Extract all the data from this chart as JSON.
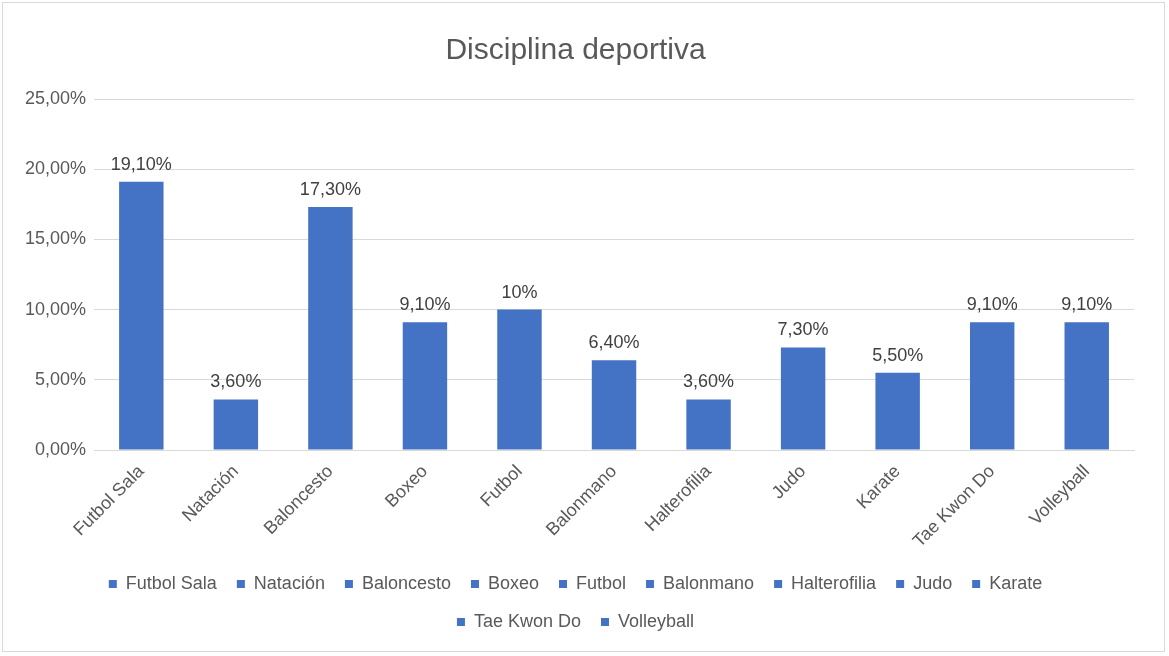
{
  "chart_data": {
    "type": "bar",
    "title": "Disciplina deportiva",
    "categories": [
      "Futbol Sala",
      "Natación",
      "Baloncesto",
      "Boxeo",
      "Futbol",
      "Balonmano",
      "Halterofilia",
      "Judo",
      "Karate",
      "Tae Kwon Do",
      "Volleyball"
    ],
    "series": [
      {
        "name": "Futbol Sala",
        "color": "#4472c4",
        "values": [
          19.1,
          null,
          null,
          null,
          null,
          null,
          null,
          null,
          null,
          null,
          null
        ],
        "value_labels": [
          "19,10%",
          null,
          null,
          null,
          null,
          null,
          null,
          null,
          null,
          null,
          null
        ]
      },
      {
        "name": "Natación",
        "color": "#4472c4",
        "values": [
          null,
          3.6,
          null,
          null,
          null,
          null,
          null,
          null,
          null,
          null,
          null
        ],
        "value_labels": [
          null,
          "3,60%",
          null,
          null,
          null,
          null,
          null,
          null,
          null,
          null,
          null
        ]
      },
      {
        "name": "Baloncesto",
        "color": "#4472c4",
        "values": [
          null,
          null,
          17.3,
          null,
          null,
          null,
          null,
          null,
          null,
          null,
          null
        ],
        "value_labels": [
          null,
          null,
          "17,30%",
          null,
          null,
          null,
          null,
          null,
          null,
          null,
          null
        ]
      },
      {
        "name": "Boxeo",
        "color": "#4472c4",
        "values": [
          null,
          null,
          null,
          9.1,
          null,
          null,
          null,
          null,
          null,
          null,
          null
        ],
        "value_labels": [
          null,
          null,
          null,
          "9,10%",
          null,
          null,
          null,
          null,
          null,
          null,
          null
        ]
      },
      {
        "name": "Futbol",
        "color": "#4472c4",
        "values": [
          null,
          null,
          null,
          null,
          10,
          null,
          null,
          null,
          null,
          null,
          null
        ],
        "value_labels": [
          null,
          null,
          null,
          null,
          "10%",
          null,
          null,
          null,
          null,
          null,
          null
        ]
      },
      {
        "name": "Balonmano",
        "color": "#4472c4",
        "values": [
          null,
          null,
          null,
          null,
          null,
          6.4,
          null,
          null,
          null,
          null,
          null
        ],
        "value_labels": [
          null,
          null,
          null,
          null,
          null,
          "6,40%",
          null,
          null,
          null,
          null,
          null
        ]
      },
      {
        "name": "Halterofilia",
        "color": "#4472c4",
        "values": [
          null,
          null,
          null,
          null,
          null,
          null,
          3.6,
          null,
          null,
          null,
          null
        ],
        "value_labels": [
          null,
          null,
          null,
          null,
          null,
          null,
          "3,60%",
          null,
          null,
          null,
          null
        ]
      },
      {
        "name": "Judo",
        "color": "#4472c4",
        "values": [
          null,
          null,
          null,
          null,
          null,
          null,
          null,
          7.3,
          null,
          null,
          null
        ],
        "value_labels": [
          null,
          null,
          null,
          null,
          null,
          null,
          null,
          "7,30%",
          null,
          null,
          null
        ]
      },
      {
        "name": "Karate",
        "color": "#4472c4",
        "values": [
          null,
          null,
          null,
          null,
          null,
          null,
          null,
          null,
          5.5,
          null,
          null
        ],
        "value_labels": [
          null,
          null,
          null,
          null,
          null,
          null,
          null,
          null,
          "5,50%",
          null,
          null
        ]
      },
      {
        "name": "Tae Kwon Do",
        "color": "#4472c4",
        "values": [
          null,
          null,
          null,
          null,
          null,
          null,
          null,
          null,
          null,
          9.1,
          null
        ],
        "value_labels": [
          null,
          null,
          null,
          null,
          null,
          null,
          null,
          null,
          null,
          "9,10%",
          null
        ]
      },
      {
        "name": "Volleyball",
        "color": "#4472c4",
        "values": [
          null,
          null,
          null,
          null,
          null,
          null,
          null,
          null,
          null,
          null,
          9.1
        ],
        "value_labels": [
          null,
          null,
          null,
          null,
          null,
          null,
          null,
          null,
          null,
          null,
          "9,10%"
        ]
      }
    ],
    "ylim": [
      0,
      25
    ],
    "yticks": [
      {
        "value": 0,
        "label": "0,00%"
      },
      {
        "value": 5,
        "label": "5,00%"
      },
      {
        "value": 10,
        "label": "10,00%"
      },
      {
        "value": 15,
        "label": "15,00%"
      },
      {
        "value": 20,
        "label": "20,00%"
      },
      {
        "value": 25,
        "label": "25,00%"
      }
    ],
    "grid": "y",
    "legend": "bottom"
  }
}
